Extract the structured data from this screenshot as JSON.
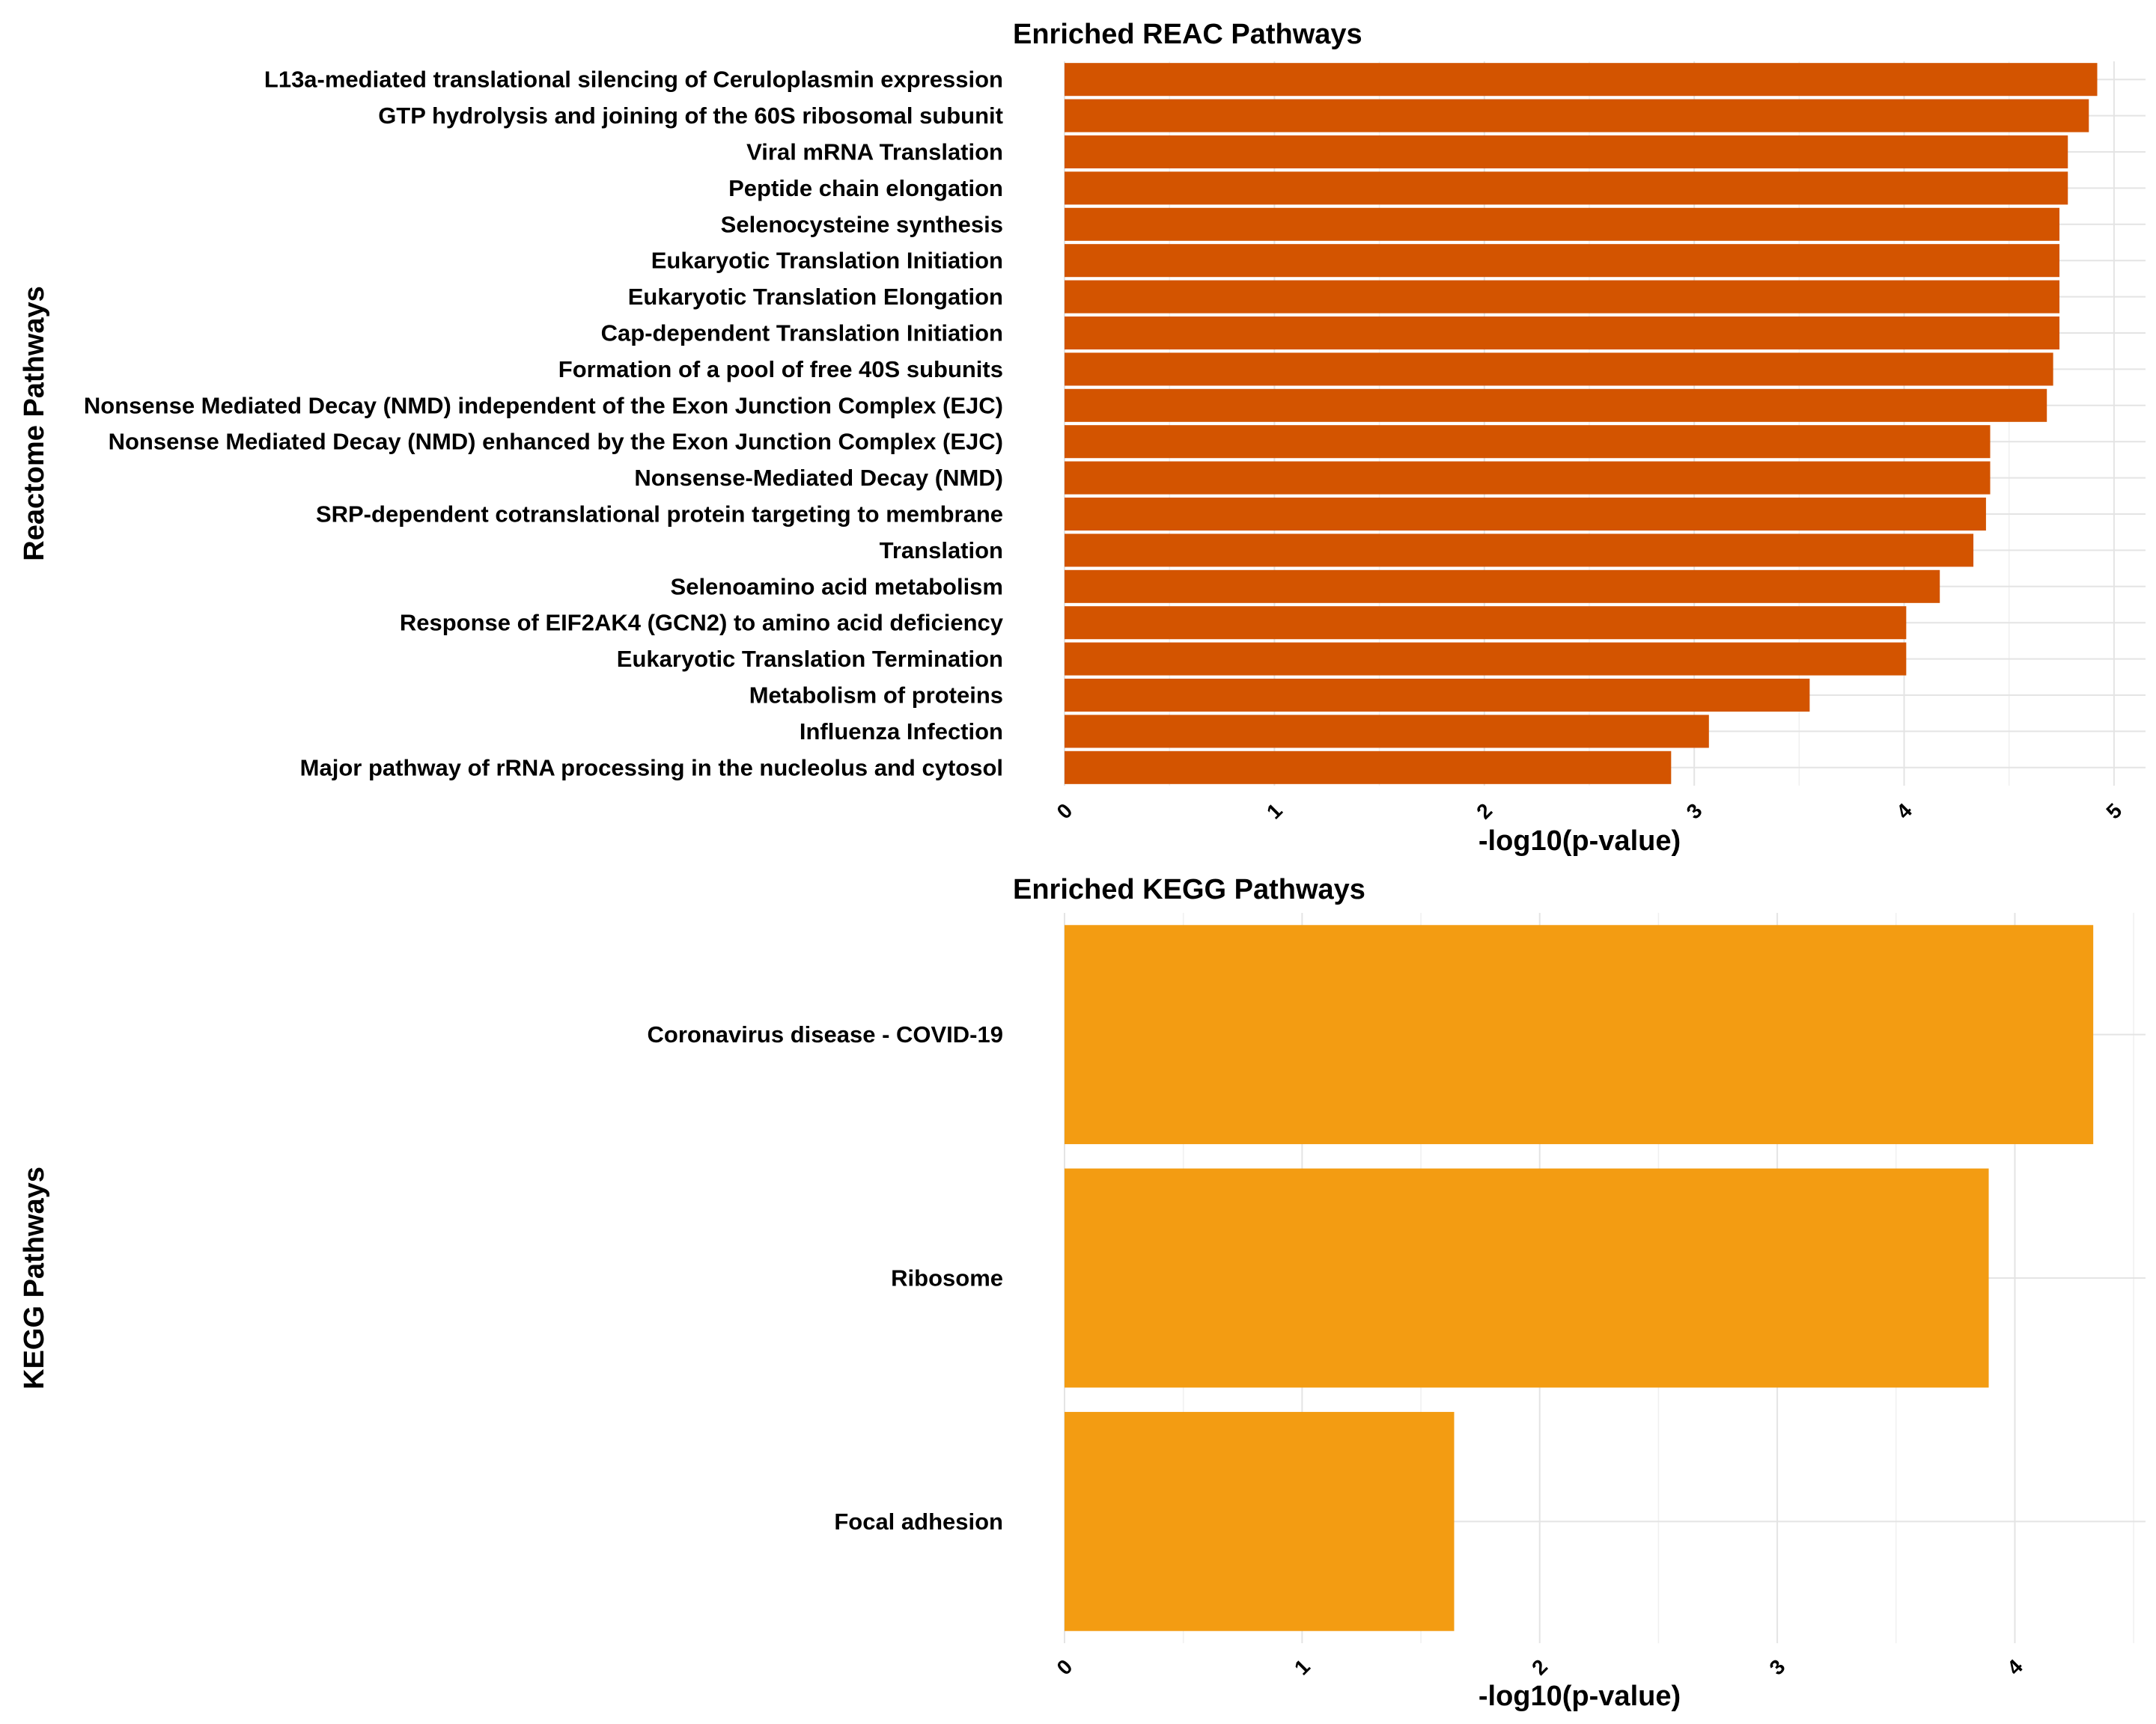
{
  "colors": {
    "reac_bar": "#D35400",
    "kegg_bar": "#F39C12"
  },
  "chart_data": [
    {
      "type": "bar",
      "orientation": "horizontal",
      "title": "Enriched REAC Pathways",
      "xlabel": "-log10(p-value)",
      "ylabel": "Reactome Pathways",
      "xlim": [
        0,
        5.15
      ],
      "xticks": [
        0,
        1,
        2,
        3,
        4,
        5
      ],
      "grid": true,
      "categories": [
        "L13a-mediated translational silencing of Ceruloplasmin expression",
        "GTP hydrolysis and joining of the 60S ribosomal subunit",
        "Viral mRNA Translation",
        "Peptide chain elongation",
        "Selenocysteine synthesis",
        "Eukaryotic Translation Initiation",
        "Eukaryotic Translation Elongation",
        "Cap-dependent Translation Initiation",
        "Formation of a pool of free 40S subunits",
        "Nonsense Mediated Decay (NMD) independent of the Exon Junction Complex (EJC)",
        "Nonsense Mediated Decay (NMD) enhanced by the Exon Junction Complex (EJC)",
        "Nonsense-Mediated Decay (NMD)",
        "SRP-dependent cotranslational protein targeting to membrane",
        "Translation",
        "Selenoamino acid metabolism",
        "Response of EIF2AK4 (GCN2) to amino acid deficiency",
        "Eukaryotic Translation Termination",
        "Metabolism of proteins",
        "Influenza Infection",
        "Major pathway of rRNA processing in the nucleolus and cytosol"
      ],
      "values": [
        4.92,
        4.88,
        4.78,
        4.78,
        4.74,
        4.74,
        4.74,
        4.74,
        4.71,
        4.68,
        4.41,
        4.41,
        4.39,
        4.33,
        4.17,
        4.01,
        4.01,
        3.55,
        3.07,
        2.89
      ]
    },
    {
      "type": "bar",
      "orientation": "horizontal",
      "title": "Enriched KEGG Pathways",
      "xlabel": "-log10(p-value)",
      "ylabel": "KEGG Pathways",
      "xlim": [
        0,
        4.55
      ],
      "xticks": [
        0,
        1,
        2,
        3,
        4
      ],
      "grid": true,
      "categories": [
        "Coronavirus disease - COVID-19",
        "Ribosome",
        "Focal adhesion"
      ],
      "values": [
        4.33,
        3.89,
        1.64
      ]
    }
  ]
}
